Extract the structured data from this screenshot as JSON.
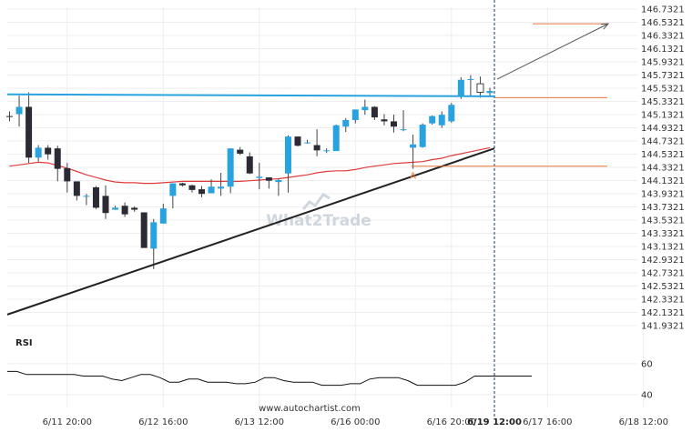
{
  "footer": {
    "source": "www.autochartist.com"
  },
  "watermark": {
    "text": "What2Trade"
  },
  "colors": {
    "bull_candle": "#29a3df",
    "bear_candle": "#2b2b35",
    "resistance": "#29a3df",
    "support": "#222222",
    "moving_average": "#e03b3b",
    "forecast_level": "#e8763a",
    "grid": "#eeeeee"
  },
  "chart_data": [
    {
      "type": "candlestick",
      "title": "",
      "y_ticks": [
        "146.7321",
        "146.5321",
        "146.3321",
        "146.1321",
        "145.9321",
        "145.7321",
        "145.5321",
        "145.3321",
        "145.1321",
        "144.9321",
        "144.7321",
        "144.5321",
        "144.3321",
        "144.1321",
        "143.9321",
        "143.7321",
        "143.5321",
        "143.3321",
        "143.1321",
        "142.9321",
        "142.7321",
        "142.5321",
        "142.3321",
        "142.1321",
        "141.9321"
      ],
      "ylim": [
        141.85,
        146.76
      ],
      "x_tick_labels": [
        {
          "label": "6/11 20:00",
          "index": 6
        },
        {
          "label": "6/12 16:00",
          "index": 16
        },
        {
          "label": "6/13 12:00",
          "index": 26
        },
        {
          "label": "6/16 00:00",
          "index": 36
        },
        {
          "label": "6/16 20:00",
          "index": 46
        },
        {
          "label": "6/17 16:00",
          "index": 56
        },
        {
          "label": "6/18 12:00",
          "index": 66
        },
        {
          "label": "6/19 12:00",
          "index": 79,
          "bold": true
        }
      ],
      "candles": [
        [
          145.11,
          145.18,
          145.03,
          145.1
        ],
        [
          145.14,
          145.42,
          144.95,
          145.25
        ],
        [
          145.25,
          145.47,
          144.4,
          144.48
        ],
        [
          144.48,
          144.67,
          144.42,
          144.63
        ],
        [
          144.63,
          144.67,
          144.45,
          144.53
        ],
        [
          144.62,
          144.66,
          144.12,
          144.31
        ],
        [
          144.32,
          144.4,
          143.95,
          144.12
        ],
        [
          144.12,
          144.12,
          143.83,
          143.9
        ],
        [
          143.9,
          143.93,
          143.76,
          143.9
        ],
        [
          144.03,
          144.05,
          143.7,
          143.72
        ],
        [
          143.9,
          144.06,
          143.55,
          143.64
        ],
        [
          143.69,
          143.75,
          143.69,
          143.72
        ],
        [
          143.75,
          143.8,
          143.58,
          143.62
        ],
        [
          143.72,
          143.74,
          143.66,
          143.69
        ],
        [
          143.65,
          143.65,
          143.12,
          143.11
        ],
        [
          143.1,
          143.55,
          142.79,
          143.5
        ],
        [
          143.48,
          143.78,
          143.48,
          143.71
        ],
        [
          143.9,
          144.09,
          143.71,
          144.09
        ],
        [
          144.09,
          144.1,
          144.04,
          144.06
        ],
        [
          144.06,
          144.07,
          143.95,
          143.99
        ],
        [
          144.0,
          144.05,
          143.88,
          143.93
        ],
        [
          143.94,
          144.15,
          143.94,
          144.04
        ],
        [
          144.01,
          144.25,
          143.9,
          144.04
        ],
        [
          144.04,
          144.62,
          143.94,
          144.62
        ],
        [
          144.6,
          144.64,
          144.52,
          144.54
        ],
        [
          144.5,
          144.56,
          144.23,
          144.24
        ],
        [
          144.17,
          144.4,
          144.0,
          144.19
        ],
        [
          144.18,
          144.18,
          144.01,
          144.13
        ],
        [
          144.11,
          144.16,
          143.9,
          144.14
        ],
        [
          144.24,
          144.82,
          143.95,
          144.8
        ],
        [
          144.8,
          144.8,
          144.65,
          144.66
        ],
        [
          144.7,
          144.75,
          144.69,
          144.71
        ],
        [
          144.67,
          144.91,
          144.5,
          144.59
        ],
        [
          144.58,
          144.62,
          144.55,
          144.59
        ],
        [
          144.58,
          144.98,
          144.58,
          144.97
        ],
        [
          144.95,
          145.08,
          144.87,
          145.05
        ],
        [
          145.05,
          145.21,
          145.0,
          145.21
        ],
        [
          145.2,
          145.36,
          145.13,
          145.25
        ],
        [
          145.25,
          145.26,
          145.05,
          145.09
        ],
        [
          145.06,
          145.14,
          144.97,
          145.03
        ],
        [
          145.03,
          145.13,
          144.86,
          144.95
        ],
        [
          144.9,
          145.2,
          144.88,
          144.91
        ],
        [
          144.63,
          144.83,
          144.31,
          144.68
        ],
        [
          144.64,
          145.0,
          144.63,
          144.98
        ],
        [
          145.0,
          145.12,
          144.98,
          145.11
        ],
        [
          144.97,
          145.18,
          144.93,
          145.13
        ],
        [
          145.03,
          145.31,
          145.01,
          145.28
        ],
        [
          145.42,
          145.7,
          145.37,
          145.66
        ],
        [
          145.66,
          145.73,
          145.41,
          145.67
        ],
        [
          145.6,
          145.71,
          145.39,
          145.47
        ],
        [
          145.46,
          145.54,
          145.41,
          145.49
        ]
      ],
      "moving_average": [
        144.35,
        144.37,
        144.39,
        144.41,
        144.4,
        144.36,
        144.32,
        144.27,
        144.22,
        144.18,
        144.14,
        144.11,
        144.1,
        144.1,
        144.09,
        144.09,
        144.1,
        144.11,
        144.12,
        144.12,
        144.12,
        144.12,
        144.12,
        144.12,
        144.12,
        144.13,
        144.14,
        144.15,
        144.16,
        144.18,
        144.2,
        144.22,
        144.25,
        144.27,
        144.28,
        144.28,
        144.3,
        144.33,
        144.35,
        144.37,
        144.39,
        144.4,
        144.41,
        144.42,
        144.45,
        144.47,
        144.51,
        144.54,
        144.57,
        144.6,
        144.63
      ],
      "resistance": {
        "start": 145.44,
        "end": 145.41
      },
      "support": {
        "start": 142.1,
        "end": 144.62
      },
      "forecast_level": 146.51,
      "current_level": 145.39,
      "pattern_low_level": 144.35,
      "pattern_point_label": "A",
      "pattern_point_index": 42
    },
    {
      "type": "line",
      "title": "RSI",
      "y_ticks": [
        60,
        40
      ],
      "ylim": [
        34,
        67
      ],
      "values": [
        55,
        55,
        53,
        53,
        53,
        53,
        53,
        53,
        52,
        52,
        52,
        50,
        49,
        51,
        53,
        53,
        51,
        48,
        48,
        50,
        50,
        48,
        48,
        48,
        47,
        47,
        48,
        51,
        51,
        49,
        48,
        48,
        48,
        46,
        46,
        46,
        47,
        47,
        50,
        51,
        51,
        51,
        49,
        46,
        46,
        46,
        46,
        46,
        48,
        52,
        52,
        52,
        52,
        52,
        52,
        52
      ]
    }
  ]
}
